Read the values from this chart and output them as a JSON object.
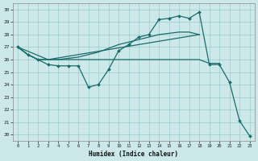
{
  "xlabel": "Humidex (Indice chaleur)",
  "background_color": "#cce8e8",
  "grid_color": "#99cccc",
  "line_color": "#1a6b6b",
  "xlim": [
    -0.5,
    23.5
  ],
  "ylim": [
    19.5,
    30.5
  ],
  "xticks": [
    0,
    1,
    2,
    3,
    4,
    5,
    6,
    7,
    8,
    9,
    10,
    11,
    12,
    13,
    14,
    15,
    16,
    17,
    18,
    19,
    20,
    21,
    22,
    23
  ],
  "yticks": [
    20,
    21,
    22,
    23,
    24,
    25,
    26,
    27,
    28,
    29,
    30
  ],
  "curve_markers": {
    "x": [
      0,
      1,
      2,
      3,
      4,
      5,
      6,
      7,
      8,
      9,
      10,
      11,
      12,
      13,
      14,
      15,
      16,
      17,
      18,
      19,
      20,
      21,
      22,
      23
    ],
    "y": [
      27.0,
      26.4,
      26.0,
      25.6,
      25.5,
      25.5,
      25.5,
      23.8,
      24.0,
      25.2,
      26.7,
      27.2,
      27.8,
      28.0,
      29.2,
      29.3,
      29.5,
      29.3,
      29.8,
      25.6,
      25.6,
      24.2,
      21.1,
      19.9
    ]
  },
  "curve_upper": {
    "x": [
      0,
      1,
      2,
      3,
      4,
      5,
      6,
      7,
      8,
      9,
      10,
      11,
      12,
      13,
      14,
      15,
      16,
      17,
      18
    ],
    "y": [
      27.0,
      26.4,
      26.0,
      26.0,
      26.0,
      26.1,
      26.2,
      26.4,
      26.6,
      26.9,
      27.2,
      27.4,
      27.6,
      27.8,
      28.0,
      28.1,
      28.2,
      28.2,
      28.0
    ]
  },
  "curve_flat": {
    "x": [
      0,
      1,
      2,
      3,
      4,
      5,
      6,
      7,
      8,
      9,
      10,
      11,
      12,
      13,
      14,
      15,
      16,
      17,
      18,
      19,
      20
    ],
    "y": [
      27.0,
      26.4,
      26.0,
      26.0,
      26.0,
      26.0,
      26.0,
      26.0,
      26.0,
      26.0,
      26.0,
      26.0,
      26.0,
      26.0,
      26.0,
      26.0,
      26.0,
      26.0,
      26.0,
      25.7,
      25.7
    ]
  },
  "curve_diag": {
    "x": [
      0,
      3,
      18
    ],
    "y": [
      27.0,
      26.0,
      28.0
    ]
  }
}
